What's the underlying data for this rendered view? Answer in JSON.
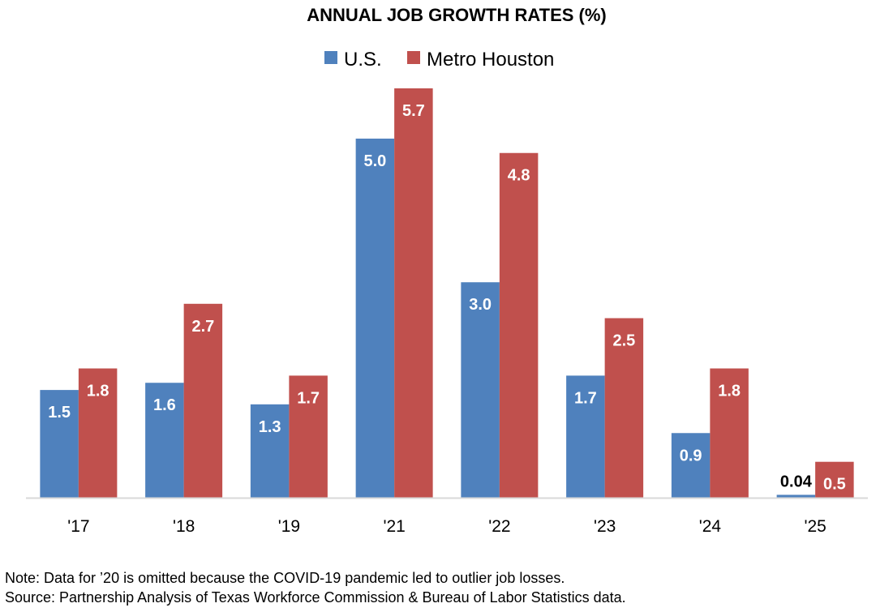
{
  "chart_data": {
    "type": "bar",
    "title": "ANNUAL JOB GROWTH RATES (%)",
    "categories": [
      "'17",
      "'18",
      "'19",
      "'21",
      "'22",
      "'23",
      "'24",
      "'25"
    ],
    "series": [
      {
        "name": "U.S.",
        "color": "#4F81BD",
        "values": [
          1.5,
          1.6,
          1.3,
          5.0,
          3.0,
          1.7,
          0.9,
          0.04
        ],
        "labels": [
          "1.5",
          "1.6",
          "1.3",
          "5.0",
          "3.0",
          "1.7",
          "0.9",
          "0.04"
        ]
      },
      {
        "name": "Metro Houston",
        "color": "#C0504D",
        "values": [
          1.8,
          2.7,
          1.7,
          5.7,
          4.8,
          2.5,
          1.8,
          0.5
        ],
        "labels": [
          "1.8",
          "2.7",
          "1.7",
          "5.7",
          "4.8",
          "2.5",
          "1.8",
          "0.5"
        ]
      }
    ],
    "xlabel": "",
    "ylabel": "",
    "ylim": [
      0,
      5.7
    ],
    "grid": false,
    "legend": "top-center"
  },
  "notes": {
    "note": "Note: Data for ’20 is omitted because the COVID-19 pandemic led to outlier job losses.",
    "source": "Source: Partnership Analysis of Texas Workforce Commission & Bureau of Labor Statistics data."
  }
}
